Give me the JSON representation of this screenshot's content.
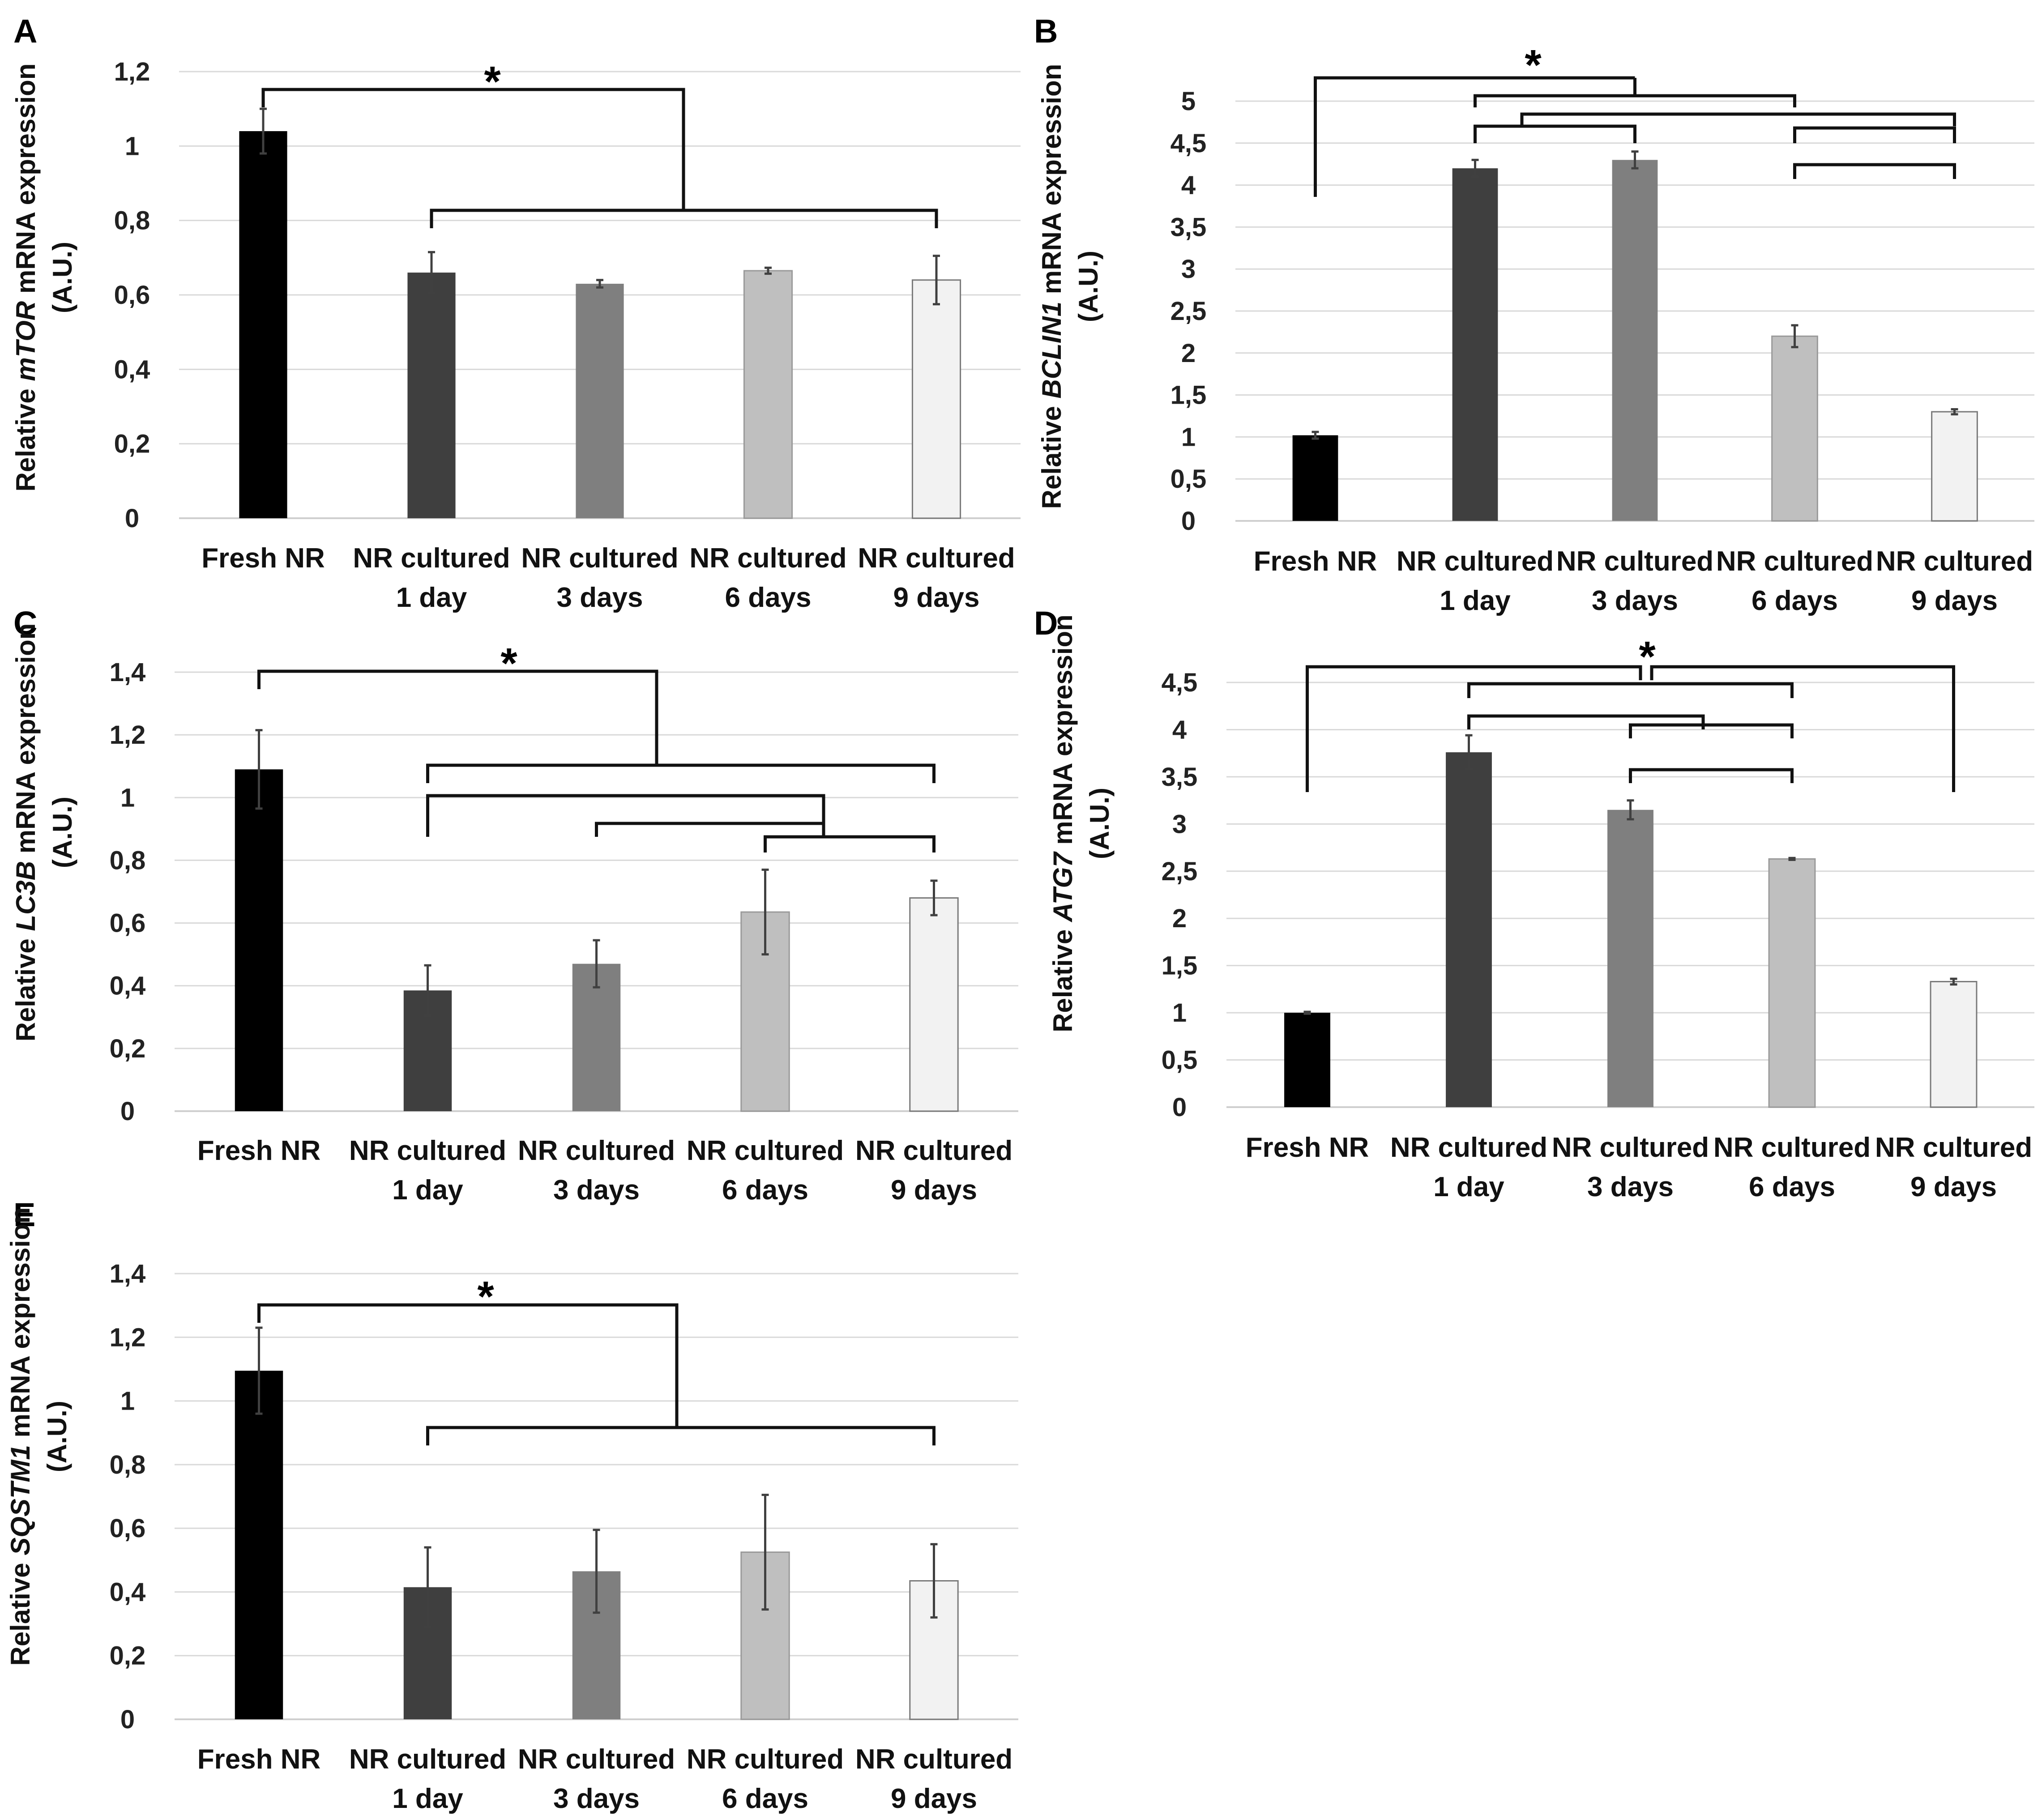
{
  "chart_data": [
    {
      "type": "bar",
      "panel_label": "A",
      "ylabel_prefix": "Relative ",
      "gene": "mTOR",
      "ylabel_suffix": " mRNA expression",
      "ylabel_unit": "(A.U.)",
      "categories": [
        [
          "Fresh NR"
        ],
        [
          "NR cultured",
          "1 day"
        ],
        [
          "NR cultured",
          "3 days"
        ],
        [
          "NR cultured",
          "6 days"
        ],
        [
          "NR cultured",
          "9 days"
        ]
      ],
      "values": [
        1.04,
        0.66,
        0.63,
        0.665,
        0.64
      ],
      "errors": [
        0.06,
        0.055,
        0.01,
        0.008,
        0.065
      ],
      "ylim": [
        0,
        1.2
      ],
      "ticks": [
        "0",
        "0,2",
        "0,4",
        "0,6",
        "0,8",
        "1",
        "1,2"
      ],
      "annotation": "*",
      "colors": [
        "#000000",
        "#3f3f3f",
        "#7f7f7f",
        "#bfbfbf",
        "#f2f2f2"
      ]
    },
    {
      "type": "bar",
      "panel_label": "B",
      "ylabel_prefix": "Relative ",
      "gene": "BCLIN1",
      "ylabel_suffix": " mRNA expression",
      "ylabel_unit": "(A.U.)",
      "categories": [
        [
          "Fresh NR"
        ],
        [
          "NR cultured",
          "1 day"
        ],
        [
          "NR cultured",
          "3 days"
        ],
        [
          "NR cultured",
          "6 days"
        ],
        [
          "NR cultured",
          "9 days"
        ]
      ],
      "values": [
        1.02,
        4.2,
        4.3,
        2.2,
        1.3
      ],
      "errors": [
        0.04,
        0.1,
        0.1,
        0.13,
        0.03
      ],
      "ylim": [
        0,
        5
      ],
      "ticks": [
        "0",
        "0,5",
        "1",
        "1,5",
        "2",
        "2,5",
        "3",
        "3,5",
        "4",
        "4,5",
        "5"
      ],
      "annotation": "*",
      "colors": [
        "#000000",
        "#3f3f3f",
        "#7f7f7f",
        "#bfbfbf",
        "#f2f2f2"
      ]
    },
    {
      "type": "bar",
      "panel_label": "C",
      "ylabel_prefix": "Relative ",
      "gene": "LC3B",
      "ylabel_suffix": " mRNA expression",
      "ylabel_unit": "(A.U.)",
      "categories": [
        [
          "Fresh NR"
        ],
        [
          "NR cultured",
          "1 day"
        ],
        [
          "NR cultured",
          "3 days"
        ],
        [
          "NR cultured",
          "6 days"
        ],
        [
          "NR cultured",
          "9 days"
        ]
      ],
      "values": [
        1.09,
        0.385,
        0.47,
        0.635,
        0.68
      ],
      "errors": [
        0.125,
        0.08,
        0.075,
        0.135,
        0.055
      ],
      "ylim": [
        0,
        1.4
      ],
      "ticks": [
        "0",
        "0,2",
        "0,4",
        "0,6",
        "0,8",
        "1",
        "1,2",
        "1,4"
      ],
      "annotation": "*",
      "colors": [
        "#000000",
        "#3f3f3f",
        "#7f7f7f",
        "#bfbfbf",
        "#f2f2f2"
      ]
    },
    {
      "type": "bar",
      "panel_label": "D",
      "ylabel_prefix": "Relative ",
      "gene": "ATG7",
      "ylabel_suffix": " mRNA expression",
      "ylabel_unit": "(A.U.)",
      "categories": [
        [
          "Fresh NR"
        ],
        [
          "NR cultured",
          "1 day"
        ],
        [
          "NR cultured",
          "3 days"
        ],
        [
          "NR cultured",
          "6 days"
        ],
        [
          "NR cultured",
          "9 days"
        ]
      ],
      "values": [
        1.0,
        3.76,
        3.15,
        2.63,
        1.33
      ],
      "errors": [
        0.01,
        0.18,
        0.1,
        0.01,
        0.03
      ],
      "ylim": [
        0,
        4.5
      ],
      "ticks": [
        "0",
        "0,5",
        "1",
        "1,5",
        "2",
        "2,5",
        "3",
        "3,5",
        "4",
        "4,5"
      ],
      "annotation": "*",
      "colors": [
        "#000000",
        "#3f3f3f",
        "#7f7f7f",
        "#bfbfbf",
        "#f2f2f2"
      ]
    },
    {
      "type": "bar",
      "panel_label": "E",
      "ylabel_prefix": "Relative ",
      "gene": "SQSTM1",
      "ylabel_suffix": " mRNA expression",
      "ylabel_unit": "(A.U.)",
      "categories": [
        [
          "Fresh NR"
        ],
        [
          "NR cultured",
          "1 day"
        ],
        [
          "NR cultured",
          "3 days"
        ],
        [
          "NR cultured",
          "6 days"
        ],
        [
          "NR cultured",
          "9 days"
        ]
      ],
      "values": [
        1.095,
        0.415,
        0.465,
        0.525,
        0.435
      ],
      "errors": [
        0.135,
        0.125,
        0.13,
        0.18,
        0.115
      ],
      "ylim": [
        0,
        1.4
      ],
      "ticks": [
        "0",
        "0,2",
        "0,4",
        "0,6",
        "0,8",
        "1",
        "1,2",
        "1,4"
      ],
      "annotation": "*",
      "colors": [
        "#000000",
        "#3f3f3f",
        "#7f7f7f",
        "#bfbfbf",
        "#f2f2f2"
      ]
    }
  ]
}
